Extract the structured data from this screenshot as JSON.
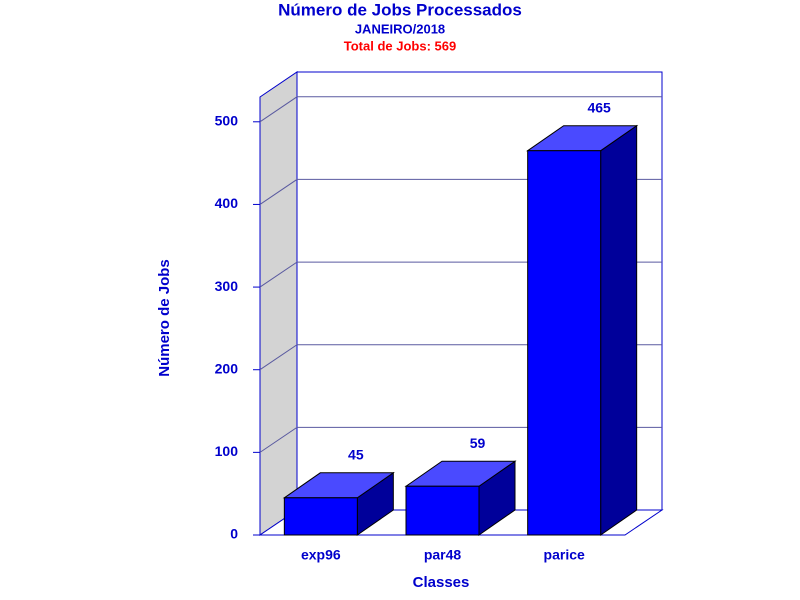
{
  "chart_data": {
    "type": "bar3d",
    "title": "Número de Jobs Processados",
    "subtitle": "JANEIRO/2018",
    "annotation": "Total de Jobs: 569",
    "xlabel": "Classes",
    "ylabel": "Número de Jobs",
    "categories": [
      "exp96",
      "par48",
      "parice"
    ],
    "values": [
      45,
      59,
      465
    ],
    "color": "#0000ff",
    "ylim": [
      0,
      530
    ],
    "yticks": [
      0,
      100,
      200,
      300,
      400,
      500
    ],
    "grid": true
  }
}
